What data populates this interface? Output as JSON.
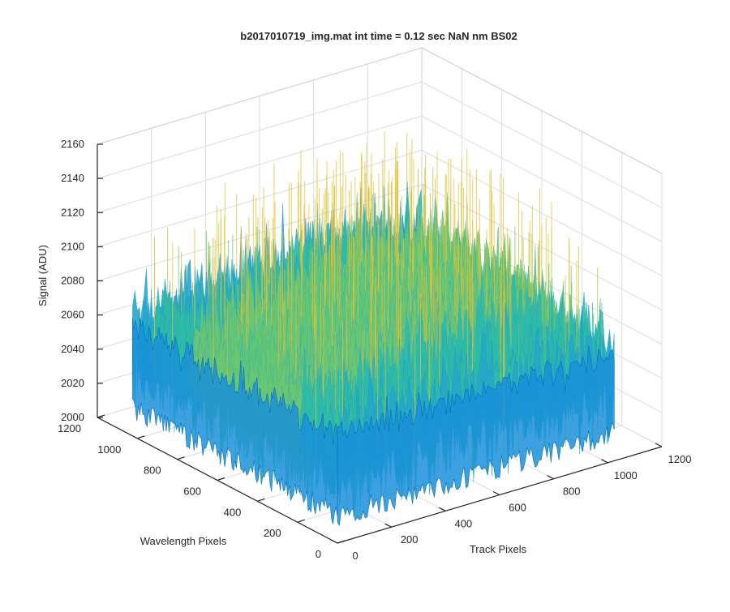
{
  "chart_data": {
    "type": "surface",
    "title": "b2017010719_img.mat int time = 0.12 sec  NaN nm BS02",
    "zlabel": "Signal (ADU)",
    "ylabel": "Wavelength Pixels",
    "xlabel": "Track Pixels",
    "zlim": [
      2000,
      2160
    ],
    "z_ticks": [
      2000,
      2020,
      2040,
      2060,
      2080,
      2100,
      2120,
      2140,
      2160
    ],
    "z_tick_labels": [
      "2000",
      "2020",
      "2040",
      "2060",
      "2080",
      "2100",
      "2120",
      "2140",
      "2160"
    ],
    "xlim": [
      0,
      1200
    ],
    "x_ticks": [
      0,
      200,
      400,
      600,
      800,
      1000,
      1200
    ],
    "x_tick_labels": [
      "0",
      "200",
      "400",
      "600",
      "800",
      "1000",
      "1200"
    ],
    "ylim": [
      0,
      1200
    ],
    "y_ticks": [
      0,
      200,
      400,
      600,
      800,
      1000,
      1200
    ],
    "y_tick_labels": [
      "0",
      "200",
      "400",
      "600",
      "800",
      "1000",
      "1200"
    ],
    "data_extent": {
      "x": [
        0,
        1024
      ],
      "y": [
        0,
        1024
      ]
    },
    "surface_summary": {
      "mean_signal": 2068,
      "min_signal": 2010,
      "max_signal": 2160,
      "noise_amplitude": 18
    },
    "colormap": [
      "#0072bd",
      "#1a90d8",
      "#26a6c9",
      "#2dbba4",
      "#6dc56f",
      "#c4bf3e",
      "#e6c235"
    ],
    "grid": true
  }
}
